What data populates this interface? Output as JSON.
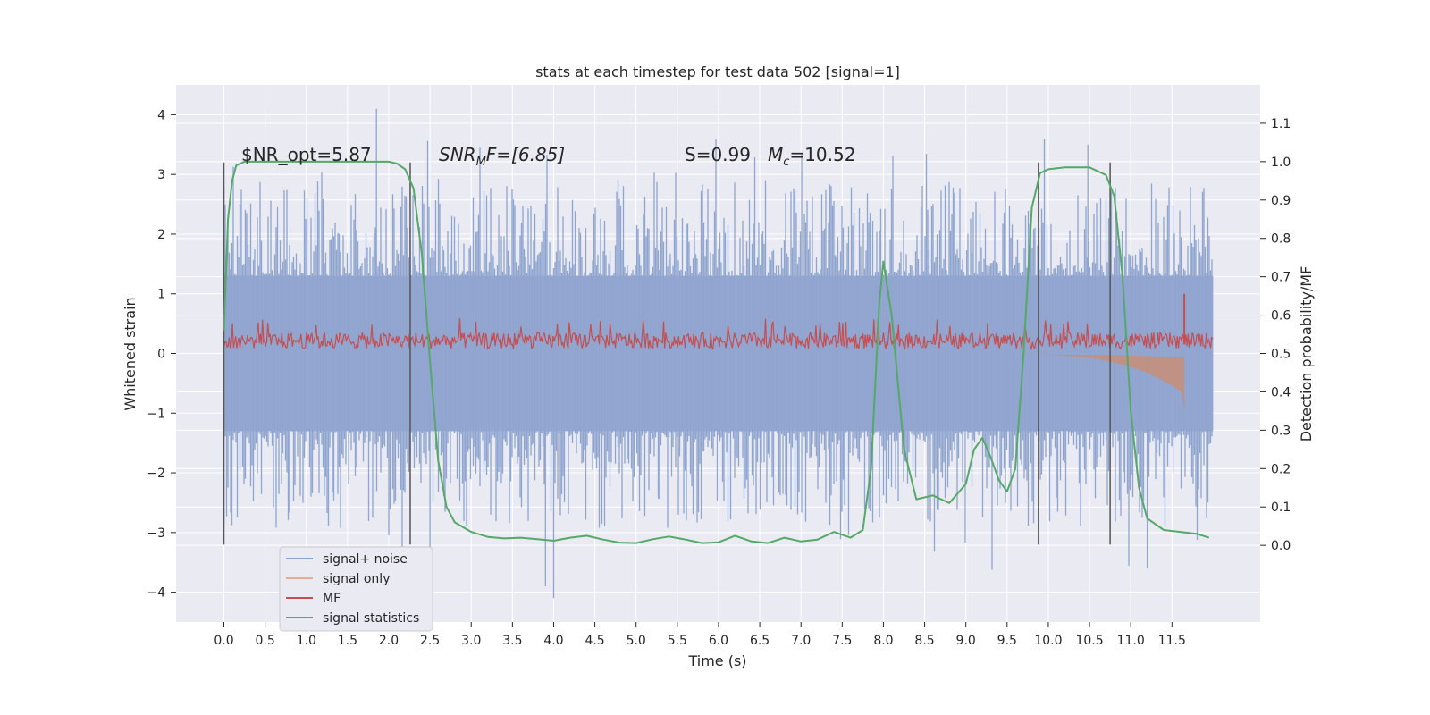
{
  "chart_data": {
    "type": "line",
    "title": "stats at each timestep for test data 502 [signal=1]",
    "xlabel": "Time (s)",
    "ylabel": "Whitened strain",
    "ylabel_right": "Detection probability/MF",
    "xlim": [
      -0.58,
      12.57
    ],
    "ylim": [
      -4.5,
      4.5
    ],
    "ylim_right": [
      -0.2,
      1.2
    ],
    "xticks": [
      "0.0",
      "0.5",
      "1.0",
      "1.5",
      "2.0",
      "2.5",
      "3.0",
      "3.5",
      "4.0",
      "4.5",
      "5.0",
      "5.5",
      "6.0",
      "6.5",
      "7.0",
      "7.5",
      "8.0",
      "8.5",
      "9.0",
      "9.5",
      "10.0",
      "10.5",
      "11.0",
      "11.5"
    ],
    "yticks_left": [
      "4",
      "3",
      "2",
      "1",
      "0",
      "−1",
      "−2",
      "−3",
      "−4"
    ],
    "yticks_right": [
      "1.1",
      "1.0",
      "0.9",
      "0.8",
      "0.7",
      "0.6",
      "0.5",
      "0.4",
      "0.3",
      "0.2",
      "0.1",
      "0.0"
    ],
    "grid": true,
    "legend_placement": "lower-left",
    "annotations": {
      "snr_opt": "$NR_opt=5.87",
      "snr_mf_label": "SNR",
      "snr_mf_sub": "M",
      "snr_mf_value": "F=[6.85]",
      "s_value": "S=0.99",
      "mc_label": "M",
      "mc_sub": "c",
      "mc_value": "=10.52"
    },
    "vertical_markers_s": [
      0.0,
      2.26,
      9.88,
      10.75
    ],
    "vertical_markers_range": [
      -3.2,
      3.2
    ],
    "noise_envelope": {
      "t_start": 0.0,
      "t_end": 12.0,
      "band_main": [
        -1.3,
        1.3
      ],
      "typical_peak": 2.6,
      "max": 4.1,
      "min": -4.1
    },
    "mf_band": {
      "t_start": 0.0,
      "t_end": 12.0,
      "low": 0.08,
      "high": 0.35,
      "spike_t": 11.65,
      "spike_value": 1.0
    },
    "signal_only": {
      "t_start": 9.6,
      "t_end": 11.65,
      "min_value": -0.95
    },
    "series": [
      {
        "name": "signal statistics",
        "axis": "right",
        "x": [
          0.0,
          0.05,
          0.1,
          0.15,
          0.25,
          0.5,
          1.0,
          1.5,
          1.8,
          2.0,
          2.1,
          2.2,
          2.3,
          2.4,
          2.5,
          2.6,
          2.7,
          2.8,
          3.0,
          3.2,
          3.4,
          3.6,
          3.8,
          4.0,
          4.2,
          4.4,
          4.6,
          4.8,
          5.0,
          5.2,
          5.4,
          5.6,
          5.8,
          6.0,
          6.2,
          6.4,
          6.6,
          6.8,
          7.0,
          7.2,
          7.4,
          7.6,
          7.75,
          7.85,
          7.95,
          8.0,
          8.1,
          8.25,
          8.4,
          8.6,
          8.8,
          9.0,
          9.1,
          9.2,
          9.3,
          9.4,
          9.5,
          9.6,
          9.7,
          9.8,
          9.9,
          10.0,
          10.2,
          10.5,
          10.7,
          10.8,
          10.9,
          11.0,
          11.1,
          11.2,
          11.4,
          11.6,
          11.8,
          11.95
        ],
        "values": [
          0.56,
          0.85,
          0.95,
          0.99,
          1.0,
          1.0,
          1.0,
          1.0,
          1.0,
          1.0,
          0.995,
          0.98,
          0.93,
          0.76,
          0.48,
          0.22,
          0.1,
          0.06,
          0.035,
          0.022,
          0.018,
          0.02,
          0.016,
          0.012,
          0.02,
          0.025,
          0.015,
          0.007,
          0.006,
          0.016,
          0.023,
          0.015,
          0.006,
          0.008,
          0.025,
          0.01,
          0.006,
          0.02,
          0.01,
          0.015,
          0.035,
          0.02,
          0.04,
          0.2,
          0.63,
          0.74,
          0.6,
          0.25,
          0.12,
          0.13,
          0.11,
          0.16,
          0.25,
          0.28,
          0.23,
          0.17,
          0.14,
          0.2,
          0.5,
          0.88,
          0.97,
          0.98,
          0.985,
          0.985,
          0.965,
          0.91,
          0.7,
          0.35,
          0.15,
          0.07,
          0.04,
          0.035,
          0.03,
          0.02
        ],
        "color": "#55a868"
      }
    ],
    "legend": [
      {
        "label": "signal+ noise",
        "color": "#8fa5cf"
      },
      {
        "label": "signal only",
        "color": "#e6ab90"
      },
      {
        "label": "MF",
        "color": "#c44e52"
      },
      {
        "label": "signal statistics",
        "color": "#55a868"
      }
    ],
    "colors": {
      "plot_bg": "#eaeaf2",
      "grid": "#ffffff",
      "noise": "#8fa5cf",
      "noise_fill": "#99abcf",
      "signal_only": "#dd8452",
      "mf": "#c44e52",
      "stats": "#55a868",
      "marker": "#555555"
    }
  }
}
